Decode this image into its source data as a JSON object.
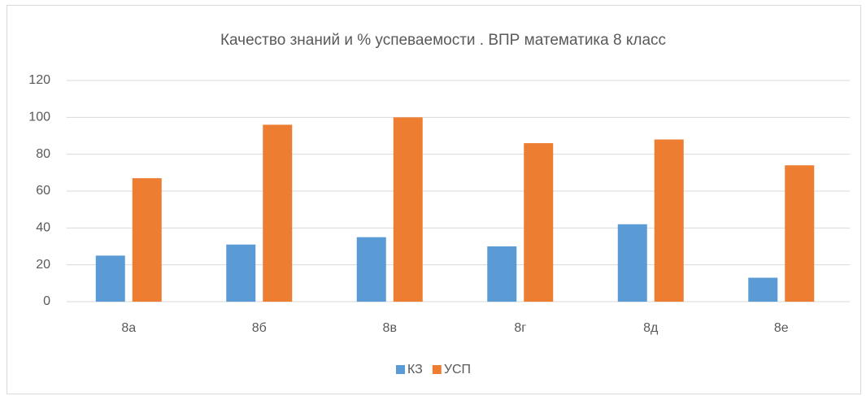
{
  "chart_data": {
    "type": "bar",
    "title": "Качество знаний и % успеваемости . ВПР математика 8  класс",
    "categories": [
      "8а",
      "8б",
      "8в",
      "8г",
      "8д",
      "8е"
    ],
    "series": [
      {
        "name": "КЗ",
        "color": "#5b9bd5",
        "values": [
          25,
          31,
          35,
          30,
          42,
          13
        ]
      },
      {
        "name": "УСП",
        "color": "#ed7d31",
        "values": [
          67,
          96,
          100,
          86,
          88,
          74
        ]
      }
    ],
    "ylim": [
      0,
      120
    ],
    "yticks": [
      0,
      20,
      40,
      60,
      80,
      100,
      120
    ],
    "grid": true,
    "legend": "bottom"
  }
}
